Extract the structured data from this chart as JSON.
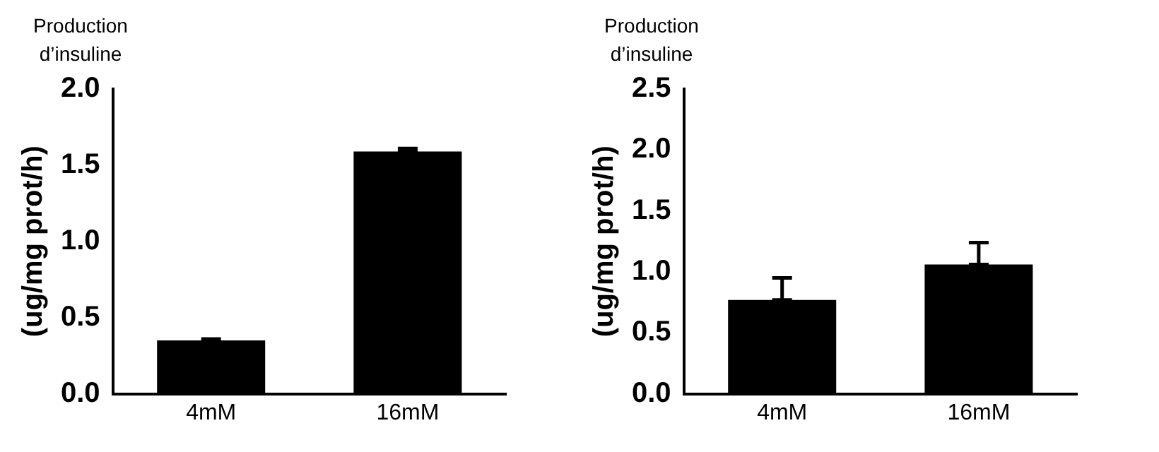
{
  "chart_data": [
    {
      "type": "bar",
      "title": "Production d’insuline",
      "ylabel": "(ug/mg prot/h)",
      "categories": [
        "4mM",
        "16mM"
      ],
      "values": [
        0.35,
        1.59
      ],
      "errors": [
        [
          0.35,
          0.36
        ],
        [
          1.59,
          1.61
        ]
      ],
      "color": "#000000",
      "ylim": [
        0,
        2.0
      ],
      "yticks": [
        {
          "value": 0,
          "label": "0.0"
        },
        0.5,
        {
          "value": 1,
          "label": "1.0"
        },
        1.5,
        {
          "value": 2,
          "label": "2.0"
        }
      ],
      "grid": false,
      "legend": false
    },
    {
      "type": "bar",
      "title": "Production d’insuline",
      "ylabel": "(ug/mg prot/h)",
      "categories": [
        "4mM",
        "16mM"
      ],
      "values": [
        0.77,
        1.06
      ],
      "errors": [
        [
          0.77,
          0.95
        ],
        [
          1.06,
          1.24
        ]
      ],
      "color": "#000000",
      "ylim": [
        0,
        2.5
      ],
      "yticks": [
        {
          "value": 0,
          "label": "0.0"
        },
        0.5,
        {
          "value": 1,
          "label": "1.0"
        },
        1.5,
        {
          "value": 2,
          "label": "2.0"
        },
        2.5
      ],
      "grid": false,
      "legend": false
    }
  ]
}
